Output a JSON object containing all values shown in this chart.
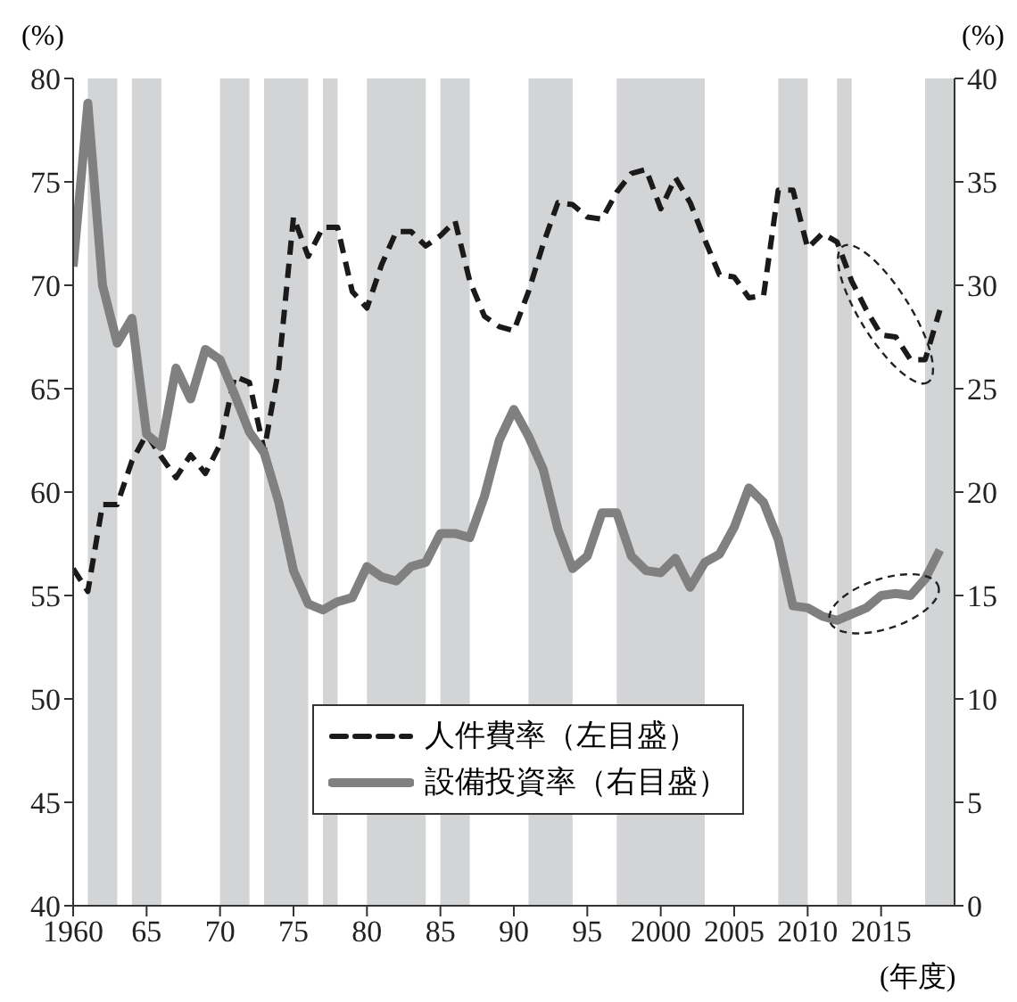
{
  "chart_data": {
    "type": "line",
    "ylabel": "(%)",
    "y2label": "(%)",
    "xlabel": "(年度)",
    "x": [
      1960,
      1961,
      1962,
      1963,
      1964,
      1965,
      1966,
      1967,
      1968,
      1969,
      1970,
      1971,
      1972,
      1973,
      1974,
      1975,
      1976,
      1977,
      1978,
      1979,
      1980,
      1981,
      1982,
      1983,
      1984,
      1985,
      1986,
      1987,
      1988,
      1989,
      1990,
      1991,
      1992,
      1993,
      1994,
      1995,
      1996,
      1997,
      1998,
      1999,
      2000,
      2001,
      2002,
      2003,
      2004,
      2005,
      2006,
      2007,
      2008,
      2009,
      2010,
      2011,
      2012,
      2013,
      2014,
      2015,
      2016,
      2017,
      2018,
      2019
    ],
    "series": [
      {
        "name": "人件費率（左目盛）",
        "color": "#1a1a1a",
        "line_style": "dashed",
        "axis": "y",
        "values": [
          56.3,
          55.2,
          59.4,
          59.4,
          61.5,
          62.8,
          61.7,
          60.7,
          61.8,
          60.9,
          62.3,
          65.6,
          65.3,
          62.0,
          66.0,
          73.3,
          71.4,
          72.8,
          72.8,
          69.7,
          68.9,
          71.0,
          72.6,
          72.6,
          71.9,
          72.4,
          73.1,
          70.2,
          68.5,
          68.0,
          67.8,
          69.7,
          72.0,
          74.0,
          73.9,
          73.3,
          73.2,
          74.5,
          75.4,
          75.6,
          73.7,
          75.2,
          74.0,
          72.2,
          70.5,
          70.4,
          69.4,
          69.5,
          74.6,
          74.6,
          71.8,
          72.5,
          72.1,
          70.2,
          68.8,
          67.6,
          67.5,
          66.4,
          66.4,
          68.8
        ]
      },
      {
        "name": "設備投資率（右目盛）",
        "color": "#808080",
        "line_style": "solid",
        "axis": "y2",
        "values": [
          30.9,
          38.8,
          30.0,
          27.2,
          28.4,
          22.8,
          22.2,
          26.0,
          24.5,
          26.9,
          26.4,
          24.7,
          22.9,
          21.9,
          19.5,
          16.2,
          14.6,
          14.3,
          14.7,
          14.9,
          16.4,
          15.9,
          15.7,
          16.4,
          16.6,
          18.0,
          18.0,
          17.8,
          19.8,
          22.5,
          24.0,
          22.7,
          21.1,
          18.2,
          16.3,
          16.9,
          19.0,
          19.0,
          16.9,
          16.2,
          16.1,
          16.8,
          15.4,
          16.6,
          17.0,
          18.3,
          20.2,
          19.5,
          17.7,
          14.5,
          14.4,
          14.0,
          13.8,
          14.1,
          14.4,
          15.0,
          15.1,
          15.0,
          15.8,
          17.2
        ]
      }
    ],
    "xlim": [
      1960,
      2020
    ],
    "xticks": [
      {
        "value": 1960,
        "label": "1960"
      },
      {
        "value": 1965,
        "label": "65"
      },
      {
        "value": 1970,
        "label": "70"
      },
      {
        "value": 1975,
        "label": "75"
      },
      {
        "value": 1980,
        "label": "80"
      },
      {
        "value": 1985,
        "label": "85"
      },
      {
        "value": 1990,
        "label": "90"
      },
      {
        "value": 1995,
        "label": "95"
      },
      2000,
      2005,
      2010,
      2015
    ],
    "ylim": [
      40,
      80
    ],
    "yticks": [
      40,
      45,
      50,
      55,
      60,
      65,
      70,
      75,
      80
    ],
    "y2lim": [
      0,
      40
    ],
    "y2ticks": [
      0,
      5,
      10,
      15,
      20,
      25,
      30,
      35,
      40
    ],
    "bands": [
      {
        "axis": "x",
        "from": 1961,
        "to": 1963,
        "color": "#d3d4d6"
      },
      {
        "axis": "x",
        "from": 1964,
        "to": 1966,
        "color": "#d3d4d6"
      },
      {
        "axis": "x",
        "from": 1970,
        "to": 1972,
        "color": "#d3d4d6"
      },
      {
        "axis": "x",
        "from": 1973,
        "to": 1976,
        "color": "#d3d4d6"
      },
      {
        "axis": "x",
        "from": 1977,
        "to": 1978,
        "color": "#d3d4d6"
      },
      {
        "axis": "x",
        "from": 1980,
        "to": 1984,
        "color": "#d3d4d6"
      },
      {
        "axis": "x",
        "from": 1985,
        "to": 1987,
        "color": "#d3d4d6"
      },
      {
        "axis": "x",
        "from": 1991,
        "to": 1994,
        "color": "#d3d4d6"
      },
      {
        "axis": "x",
        "from": 1997,
        "to": 2003,
        "color": "#d3d4d6"
      },
      {
        "axis": "x",
        "from": 2008,
        "to": 2010,
        "color": "#d3d4d6"
      },
      {
        "axis": "x",
        "from": 2012,
        "to": 2013,
        "color": "#d3d4d6"
      },
      {
        "axis": "x",
        "from": 2018,
        "to": 2020,
        "color": "#d3d4d6"
      }
    ],
    "legend": "bottom",
    "marker": "none",
    "grid": false
  }
}
